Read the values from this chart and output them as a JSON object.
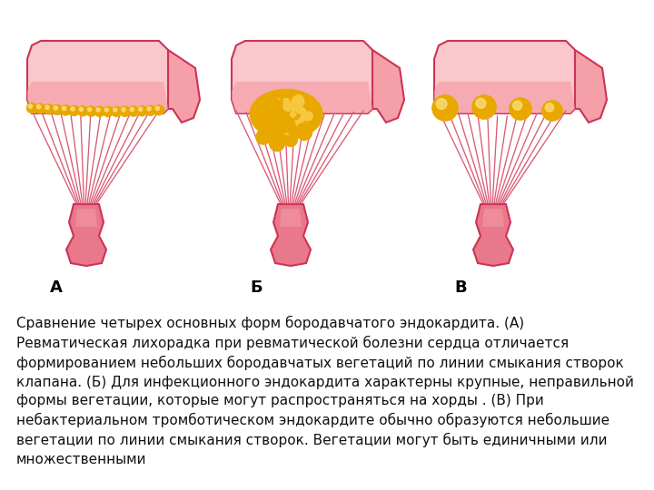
{
  "background_color": "#ffffff",
  "text": "Сравнение четырех основных форм бородавчатого эндокардита. (А)\nРевматическая лихорадка при ревматической болезни сердца отличается\nформированием небольших бородавчатых вегетаций по линии смыкания створок\nклапана. (Б) Для инфекционного эндокардита характерны крупные, неправильной\nформы вегетации, которые могут распространяться на хорды . (В) При\nнебактериальном тромботическом эндокардите обычно образуются небольшие\nвегетации по линии смыкания створок. Вегетации могут быть единичными или\nмножественными",
  "labels": [
    "А",
    "Б",
    "В"
  ],
  "tissue_pink": "#f5a0a8",
  "tissue_mid": "#e8788a",
  "tissue_dark": "#cc3355",
  "tissue_light_inner": "#fac8cc",
  "cord_color": "#d04060",
  "cord_light": "#f0a0b0",
  "bead_orange": "#e8a800",
  "bead_yellow": "#f5c840",
  "bead_highlight": "#fce080",
  "text_fontsize": 11.0,
  "label_fontsize": 13
}
